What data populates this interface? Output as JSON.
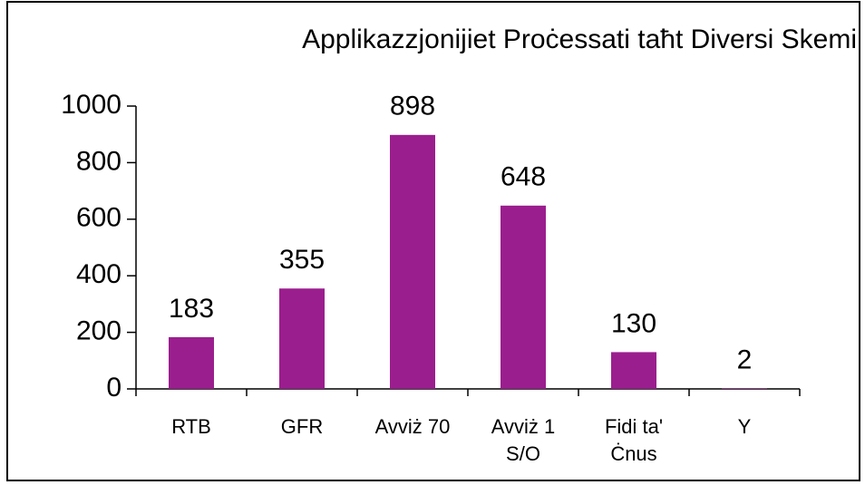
{
  "chart_data": {
    "type": "bar",
    "title": "Applikazzjonijiet Proċessati taħt Diversi Skemi",
    "categories": [
      "RTB",
      "GFR",
      "Avviż 70",
      "Avviż 1 S/O",
      "Fidi ta' Ċnus",
      "Y"
    ],
    "values": [
      183,
      355,
      898,
      648,
      130,
      2
    ],
    "color": "#9b1e8e",
    "ylim": [
      0,
      1000
    ],
    "yticks": [
      0,
      200,
      400,
      600,
      800,
      1000
    ]
  }
}
